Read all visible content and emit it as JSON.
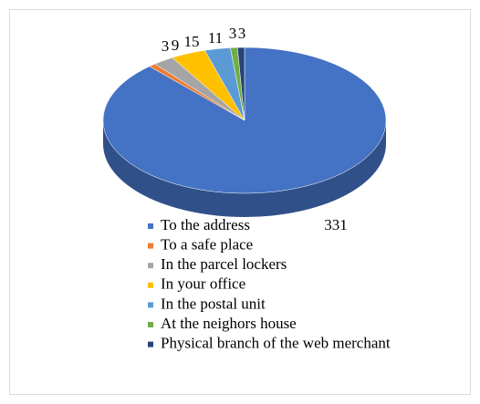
{
  "chart_data": {
    "type": "pie",
    "categories": [
      "To the address",
      "To a safe place",
      "In the parcel lockers",
      "In your office",
      "In the postal unit",
      "At the neighors house",
      "Physical branch of the web merchant"
    ],
    "values": [
      331,
      3,
      9,
      15,
      11,
      3,
      3
    ],
    "colors": [
      "#4472c4",
      "#ed7d31",
      "#a5a5a5",
      "#ffc000",
      "#5b9bd5",
      "#70ad47",
      "#264478"
    ],
    "legend": "bottom"
  }
}
